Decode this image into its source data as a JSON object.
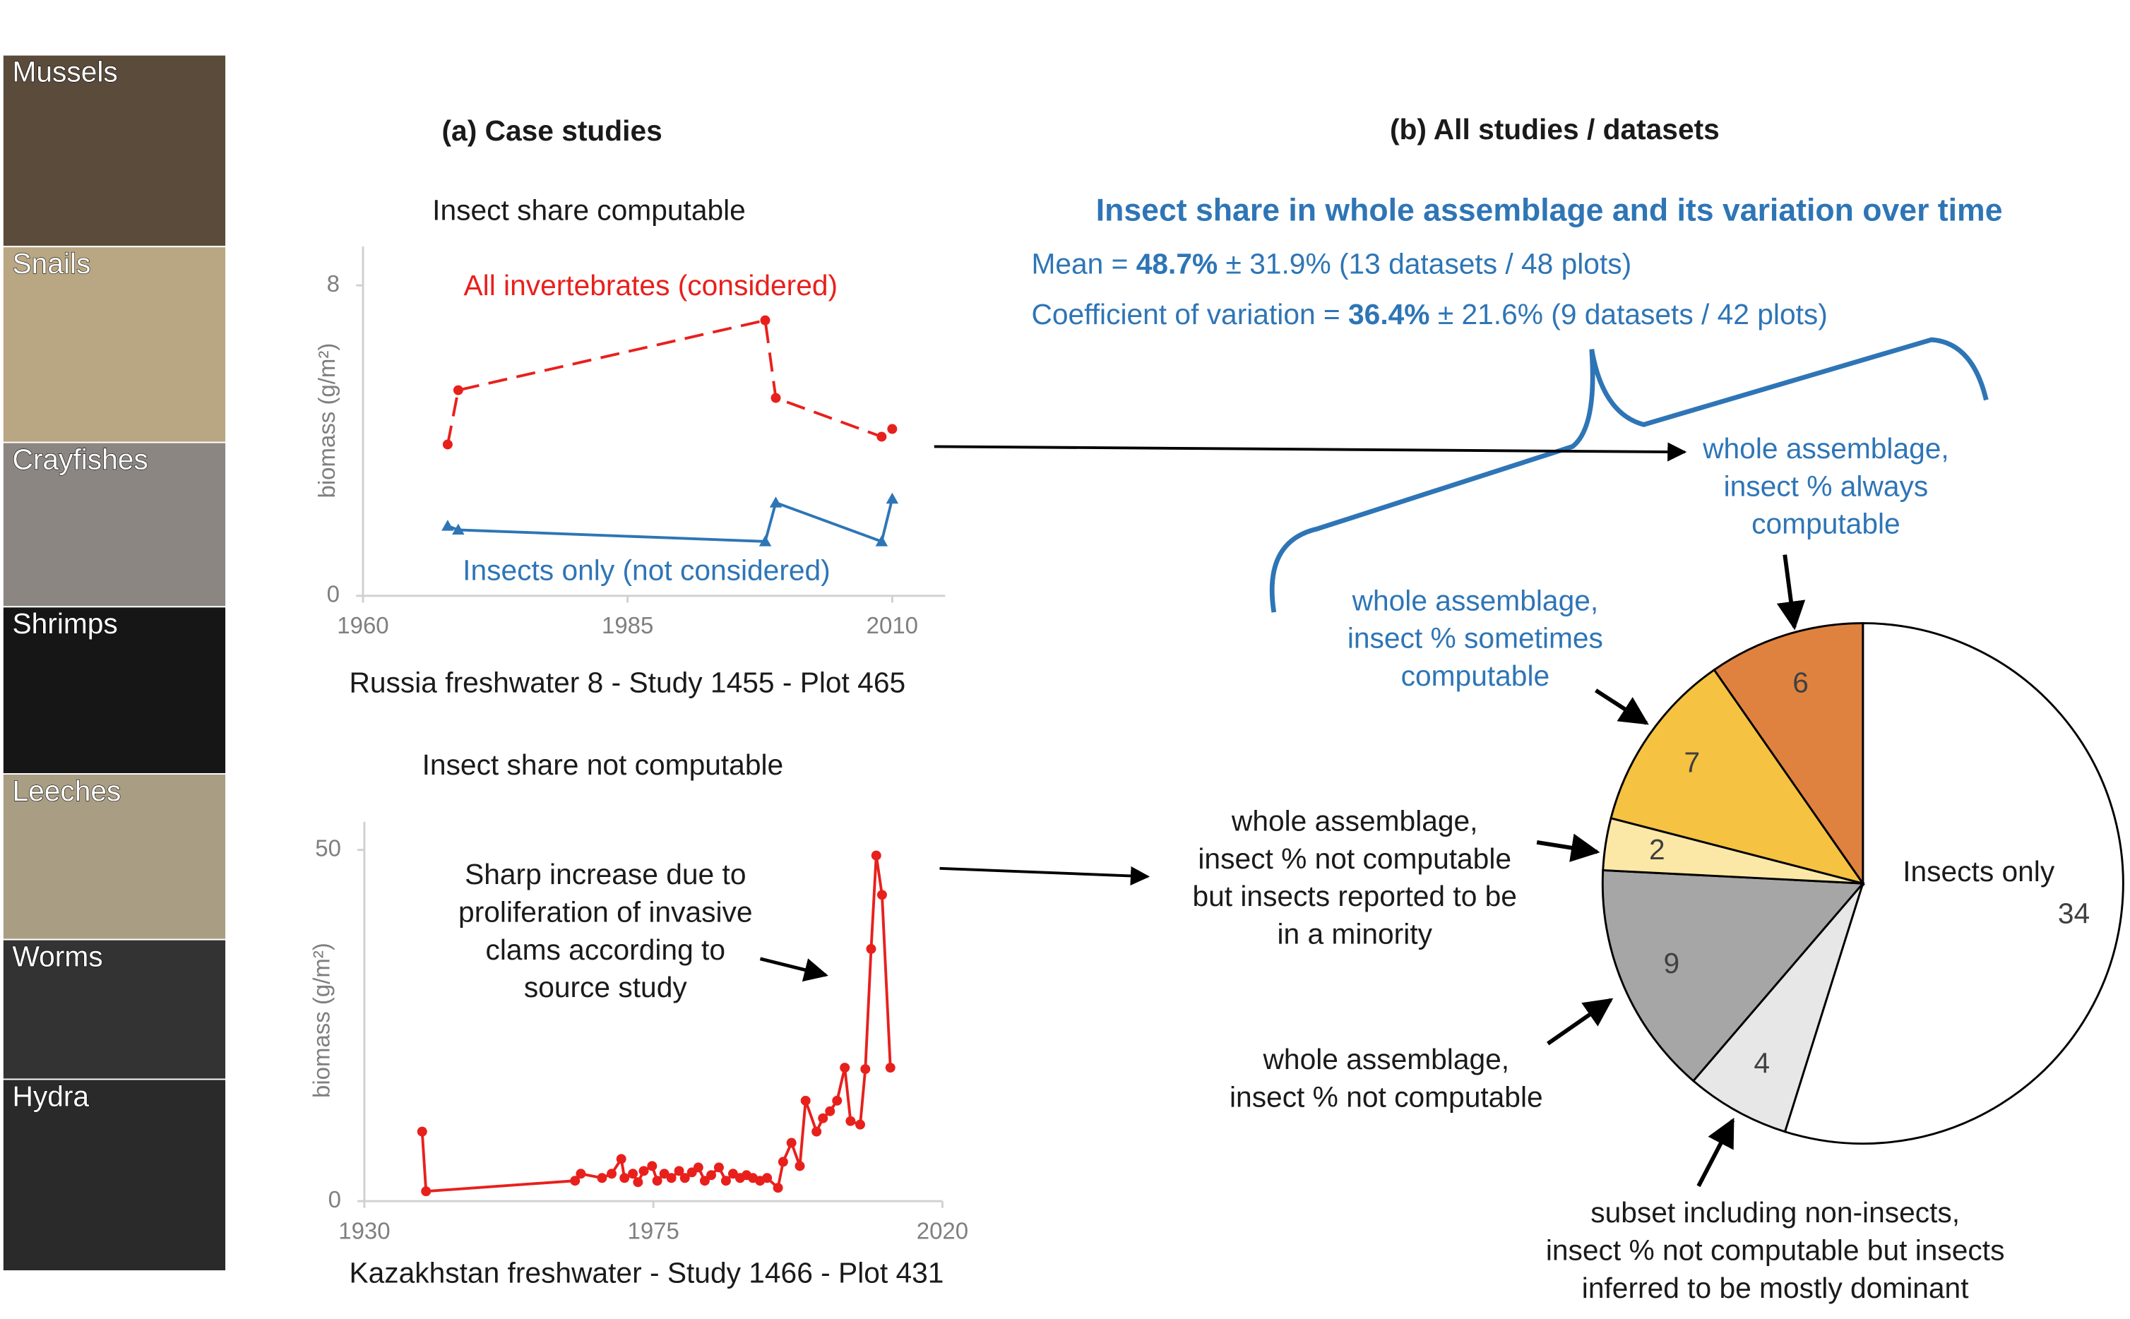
{
  "photos": [
    "Mussels",
    "Snails",
    "Crayfishes",
    "Shrimps",
    "Leeches",
    "Worms",
    "Hydra"
  ],
  "panel_a": "(a) Case studies",
  "panel_b": "(b) All studies / datasets",
  "heading": "Insect share in whole assemblage and its variation over time",
  "stats": [
    {
      "name": "Mean =",
      "value": "48.7%",
      "rest": "± 31.9% (13 datasets / 48 plots)"
    },
    {
      "name": "Coefficient of variation  =",
      "value": "36.4%",
      "rest": "± 21.6% (9 datasets / 42 plots)"
    }
  ],
  "pie_notes": [
    [
      "whole assemblage,",
      "insect % always",
      "computable"
    ],
    [
      "whole assemblage,",
      "insect % sometimes",
      "computable"
    ],
    [
      "whole assemblage,",
      "insect % not computable",
      "but insects reported to be",
      "in a minority"
    ],
    [
      "whole assemblage,",
      "insect % not computable"
    ],
    [
      "subset including non-insects,",
      "insect % not computable but insects",
      "inferred to be mostly dominant"
    ]
  ],
  "chart_data": [
    {
      "type": "line",
      "title": "Insect share computable",
      "ylabel": "biomass (g/m²)",
      "caption": "Russia freshwater 8 - Study 1455 - Plot 465",
      "xlim": [
        1960,
        2015
      ],
      "xticks": [
        1960,
        1985,
        2010
      ],
      "ylim": [
        0,
        9
      ],
      "yticks": [
        0,
        8
      ],
      "series": [
        {
          "name": "All invertebrates (considered)",
          "color": "#e8201c",
          "dashed": true,
          "marker": "circle",
          "x": [
            1968,
            1969,
            1998,
            1999,
            2009,
            2010
          ],
          "values": [
            3.9,
            5.3,
            7.1,
            5.1,
            4.1,
            4.3
          ]
        },
        {
          "name": "Insects only (not considered)",
          "color": "#2e75b6",
          "dashed": false,
          "marker": "triangle",
          "x": [
            1968,
            1969,
            1998,
            1999,
            2009,
            2010
          ],
          "values": [
            1.8,
            1.7,
            1.4,
            2.4,
            1.4,
            2.5
          ]
        }
      ]
    },
    {
      "type": "line",
      "title": "Insect share not computable",
      "ylabel": "biomass (g/m²)",
      "caption": "Kazakhstan freshwater - Study 1466 - Plot 431",
      "annotation": [
        "Sharp increase due to",
        "proliferation of invasive",
        "clams according to",
        "source study"
      ],
      "xlim": [
        1930,
        2020
      ],
      "xticks": [
        1930,
        1975,
        2020
      ],
      "ylim": [
        0,
        54
      ],
      "yticks": [
        0,
        50
      ],
      "series": [
        {
          "color": "#e8201c",
          "dashed": false,
          "marker": "circle",
          "x": [
            1939,
            1939.6,
            1962.8,
            1963.7,
            1967,
            1968.5,
            1970,
            1970.5,
            1971.8,
            1972.6,
            1973.5,
            1974.8,
            1975.6,
            1976.7,
            1977.8,
            1979,
            1979.9,
            1981,
            1982,
            1983,
            1984,
            1985.2,
            1986.3,
            1987.4,
            1988.5,
            1989.5,
            1990.5,
            1991.6,
            1992.7,
            1994.4,
            1995.2,
            1996.5,
            1997.8,
            1998.7,
            2000.4,
            2001.4,
            2002.5,
            2003.6,
            2004.8,
            2005.7,
            2007.2,
            2008,
            2008.9,
            2009.7,
            2010.6,
            2011.9
          ],
          "values": [
            9.9,
            1.4,
            2.9,
            3.9,
            3.3,
            3.9,
            6,
            3.3,
            3.9,
            2.7,
            4.3,
            5,
            2.9,
            3.9,
            3.3,
            4.3,
            3.3,
            4.1,
            4.8,
            2.9,
            3.7,
            4.8,
            2.9,
            3.9,
            3.3,
            3.7,
            3.3,
            2.9,
            3.3,
            1.9,
            5.6,
            8.3,
            5,
            14.3,
            9.9,
            11.8,
            12.8,
            14.3,
            19,
            11.4,
            10.9,
            18.8,
            35.9,
            49.2,
            43.6,
            19
          ]
        }
      ]
    },
    {
      "type": "pie",
      "categories": [
        "Insects only",
        null,
        null,
        null,
        null,
        null
      ],
      "values": [
        34,
        4,
        9,
        2,
        7,
        6
      ],
      "colors": [
        "#ffffff",
        "#e7e7e7",
        "#a6a6a6",
        "#fce8a6",
        "#f5c242",
        "#e0823f"
      ]
    }
  ]
}
